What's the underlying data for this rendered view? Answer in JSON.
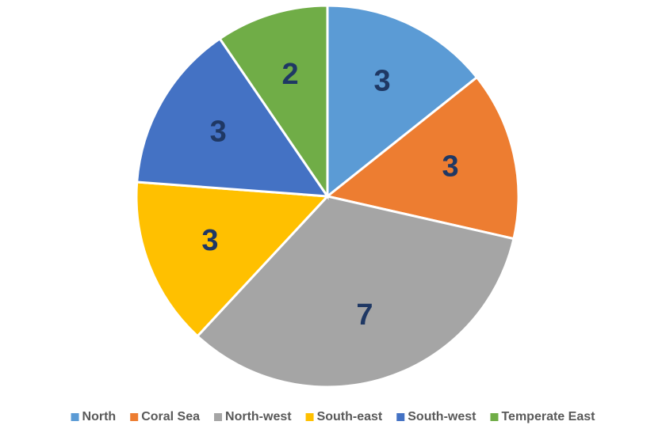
{
  "chart_data": {
    "type": "pie",
    "categories": [
      "North",
      "Coral Sea",
      "North-west",
      "South-east",
      "South-west",
      "Temperate East"
    ],
    "values": [
      3,
      3,
      7,
      3,
      3,
      2
    ],
    "colors": [
      "#5b9bd5",
      "#ed7d31",
      "#a5a5a5",
      "#ffc000",
      "#4472c4",
      "#70ad47"
    ],
    "legend": "bottom"
  }
}
